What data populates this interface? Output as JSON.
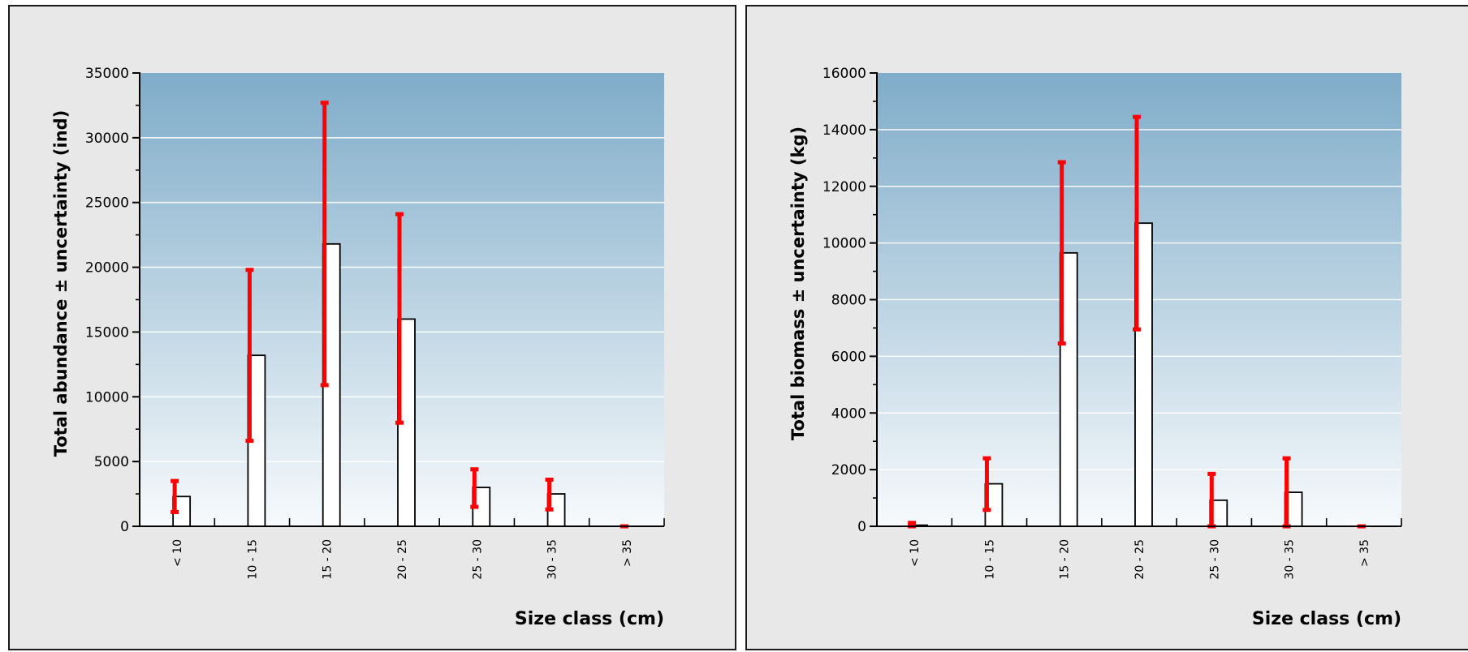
{
  "colors": {
    "panel_bg": "#e8e8e8",
    "plot_top": "#7facc9",
    "plot_bottom": "#f7fafc",
    "bar_fill": "#ffffff",
    "bar_stroke": "#000000",
    "error_bar": "#ff0000",
    "gridline": "#ffffff"
  },
  "chart_data": [
    {
      "type": "bar",
      "title": "",
      "xlabel": "Size class (cm)",
      "ylabel": "Total abundance ± uncertainty (ind)",
      "categories": [
        "< 10",
        "10 - 15",
        "15 - 20",
        "20 - 25",
        "25 - 30",
        "30 - 35",
        "> 35"
      ],
      "values": [
        2300,
        13200,
        21800,
        16000,
        3000,
        2500,
        0
      ],
      "error_low": [
        1100,
        6600,
        10900,
        8000,
        1500,
        1300,
        0
      ],
      "error_high": [
        3500,
        19800,
        32700,
        24100,
        4400,
        3600,
        0
      ],
      "ylim": [
        0,
        35000
      ],
      "yticks": [
        0,
        5000,
        10000,
        15000,
        20000,
        25000,
        30000,
        35000
      ],
      "ytick_labels": [
        "0",
        "5000",
        "10000",
        "15000",
        "20000",
        "25000",
        "30000",
        "35000"
      ],
      "grid": true,
      "error_bar_color": "#ff0000"
    },
    {
      "type": "bar",
      "title": "",
      "xlabel": "Size class (cm)",
      "ylabel": "Total biomass ± uncertainty (kg)",
      "categories": [
        "< 10",
        "10 - 15",
        "15 - 20",
        "20 - 25",
        "25 - 30",
        "30 - 35",
        "> 35"
      ],
      "values": [
        40,
        1500,
        9650,
        10700,
        920,
        1200,
        0
      ],
      "error_low": [
        0,
        580,
        6450,
        6950,
        0,
        0,
        0
      ],
      "error_high": [
        120,
        2400,
        12850,
        14450,
        1850,
        2400,
        0
      ],
      "ylim": [
        0,
        16000
      ],
      "yticks": [
        0,
        2000,
        4000,
        6000,
        8000,
        10000,
        12000,
        14000,
        16000
      ],
      "ytick_labels": [
        "0",
        "2000",
        "4000",
        "6000",
        "8000",
        "10000",
        "12000",
        "14000",
        "16000"
      ],
      "grid": true,
      "error_bar_color": "#ff0000"
    }
  ]
}
